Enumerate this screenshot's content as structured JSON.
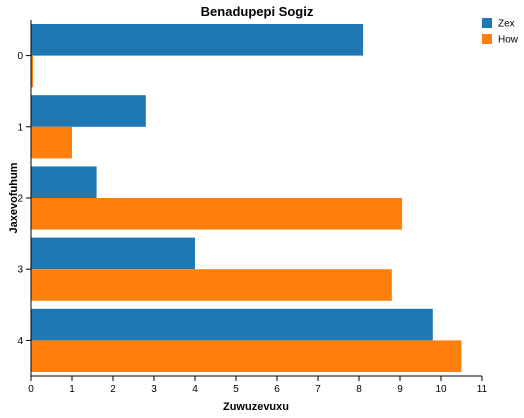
{
  "chart_data": {
    "type": "bar",
    "orientation": "horizontal",
    "title": "Benadupepi Sogiz",
    "xlabel": "Zuwuzevuxu",
    "ylabel": "Jaxevofuhum",
    "categories": [
      "0",
      "1",
      "2",
      "3",
      "4"
    ],
    "xlim": [
      0,
      11
    ],
    "xticks": [
      "0",
      "1",
      "2",
      "3",
      "4",
      "5",
      "6",
      "7",
      "8",
      "9",
      "10",
      "11"
    ],
    "series": [
      {
        "name": "Zex",
        "color": "#1f77b4",
        "values": [
          8.1,
          2.8,
          1.6,
          4.0,
          9.8
        ]
      },
      {
        "name": "How",
        "color": "#ff7f0e",
        "values": [
          0.05,
          1.0,
          9.05,
          8.8,
          10.5
        ]
      }
    ],
    "grid": false,
    "legend_position": "top-right"
  }
}
